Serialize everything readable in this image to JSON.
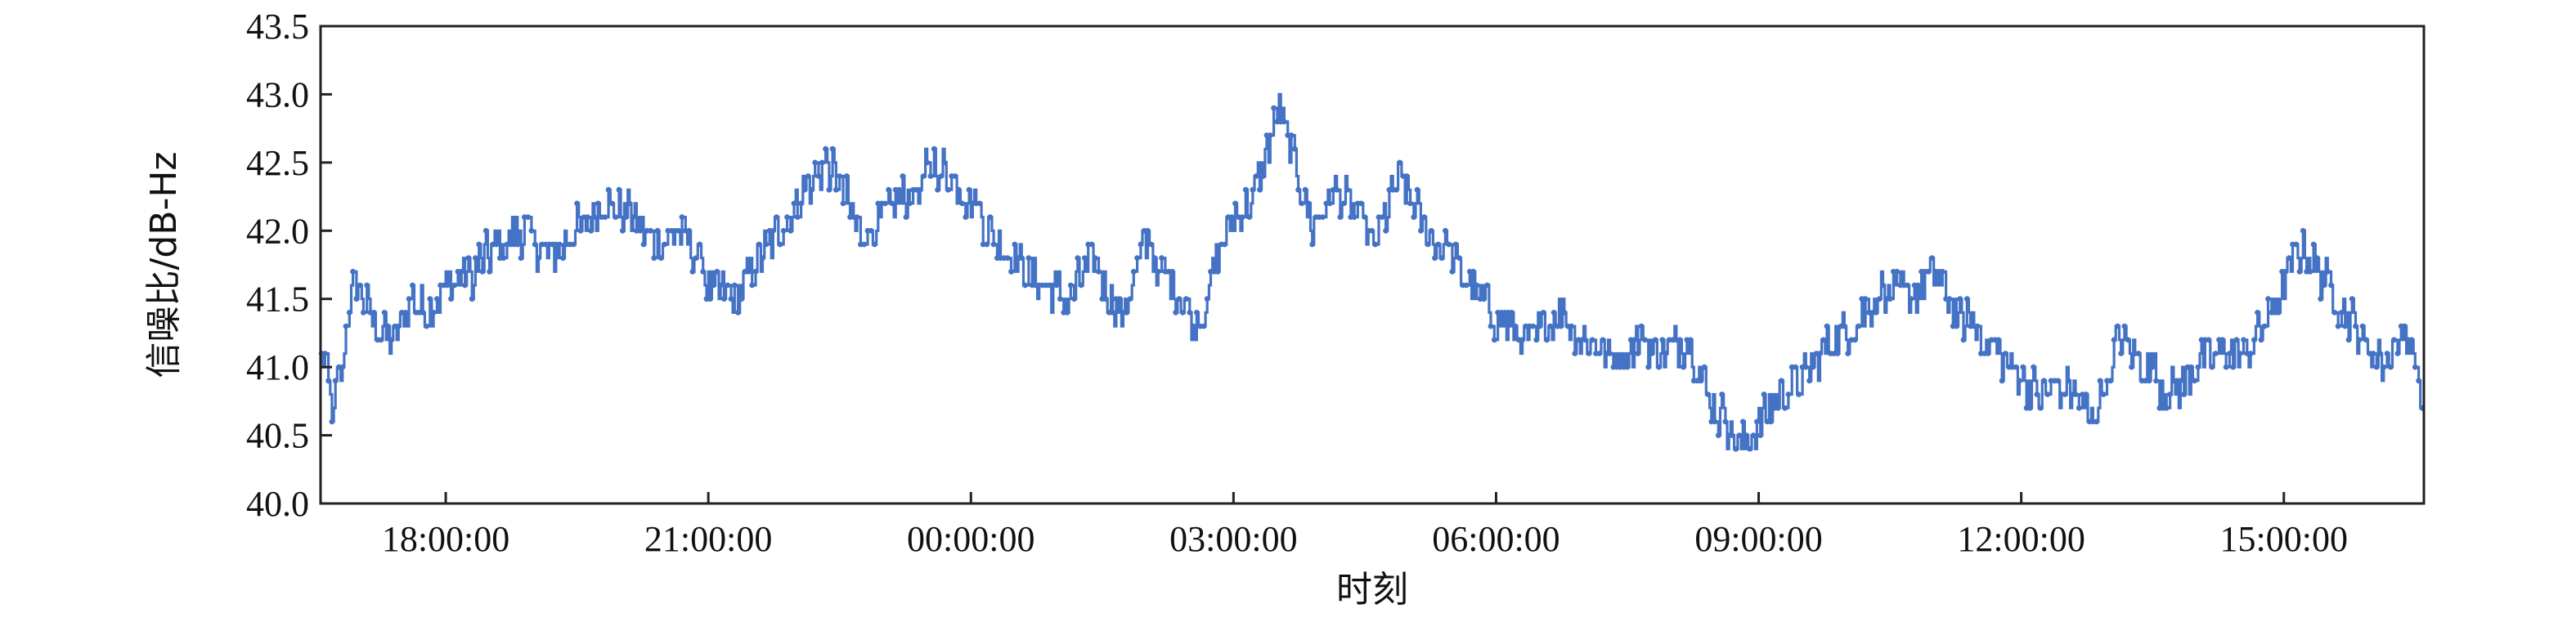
{
  "chart_data": {
    "type": "line",
    "xlabel": "时刻",
    "ylabel": "信噪比/dB-Hz",
    "x_unit": "hours",
    "x_ticks": [
      {
        "label": "18:00:00",
        "t": 18
      },
      {
        "label": "21:00:00",
        "t": 21
      },
      {
        "label": "00:00:00",
        "t": 24
      },
      {
        "label": "03:00:00",
        "t": 27
      },
      {
        "label": "06:00:00",
        "t": 30
      },
      {
        "label": "09:00:00",
        "t": 33
      },
      {
        "label": "12:00:00",
        "t": 36
      },
      {
        "label": "15:00:00",
        "t": 39
      }
    ],
    "xlim": [
      16.57,
      40.6
    ],
    "ylim": [
      40.0,
      43.5
    ],
    "y_ticks": [
      "40.0",
      "40.5",
      "41.0",
      "41.5",
      "42.0",
      "42.5",
      "43.0",
      "43.5"
    ],
    "y_tick_values": [
      40.0,
      40.5,
      41.0,
      41.5,
      42.0,
      42.5,
      43.0,
      43.5
    ],
    "grid": false,
    "series": [
      {
        "color": "#4472C4",
        "t": [
          16.6,
          16.7,
          16.8,
          16.9,
          17.0,
          17.2,
          17.4,
          17.6,
          17.8,
          18.0,
          18.3,
          18.6,
          18.9,
          19.2,
          19.5,
          19.8,
          20.1,
          20.4,
          20.7,
          21.0,
          21.3,
          21.6,
          21.9,
          22.2,
          22.4,
          22.7,
          23.0,
          23.3,
          23.6,
          23.9,
          24.2,
          24.5,
          24.8,
          25.1,
          25.4,
          25.7,
          26.0,
          26.3,
          26.6,
          26.8,
          27.0,
          27.2,
          27.35,
          27.5,
          27.7,
          27.9,
          28.1,
          28.3,
          28.6,
          28.9,
          29.2,
          29.5,
          29.8,
          30.1,
          30.4,
          30.7,
          31.0,
          31.3,
          31.6,
          31.9,
          32.2,
          32.4,
          32.6,
          32.8,
          33.0,
          33.2,
          33.5,
          33.8,
          34.1,
          34.4,
          34.7,
          35.0,
          35.3,
          35.6,
          35.9,
          36.2,
          36.5,
          36.8,
          37.1,
          37.4,
          37.7,
          38.0,
          38.3,
          38.6,
          38.9,
          39.2,
          39.5,
          39.8,
          40.1,
          40.4,
          40.6
        ],
        "snr": [
          41.1,
          40.7,
          41.0,
          41.5,
          41.6,
          41.3,
          41.2,
          41.5,
          41.4,
          41.6,
          41.7,
          41.9,
          42.0,
          41.8,
          42.0,
          42.2,
          42.1,
          41.9,
          42.0,
          41.6,
          41.5,
          41.8,
          42.1,
          42.4,
          42.5,
          42.0,
          42.1,
          42.3,
          42.5,
          42.3,
          42.0,
          41.8,
          41.6,
          41.5,
          41.8,
          41.4,
          41.9,
          41.6,
          41.3,
          41.8,
          42.1,
          42.2,
          42.5,
          42.9,
          42.5,
          42.0,
          42.3,
          42.2,
          41.9,
          42.4,
          42.0,
          41.8,
          41.5,
          41.3,
          41.2,
          41.4,
          41.2,
          41.1,
          41.2,
          41.1,
          41.2,
          40.8,
          40.6,
          40.4,
          40.6,
          40.8,
          40.9,
          41.2,
          41.3,
          41.6,
          41.5,
          41.7,
          41.4,
          41.2,
          41.0,
          40.8,
          40.9,
          40.6,
          41.2,
          41.0,
          40.8,
          41.0,
          41.1,
          41.1,
          41.5,
          41.9,
          41.6,
          41.3,
          41.0,
          41.3,
          40.6
        ]
      }
    ]
  }
}
